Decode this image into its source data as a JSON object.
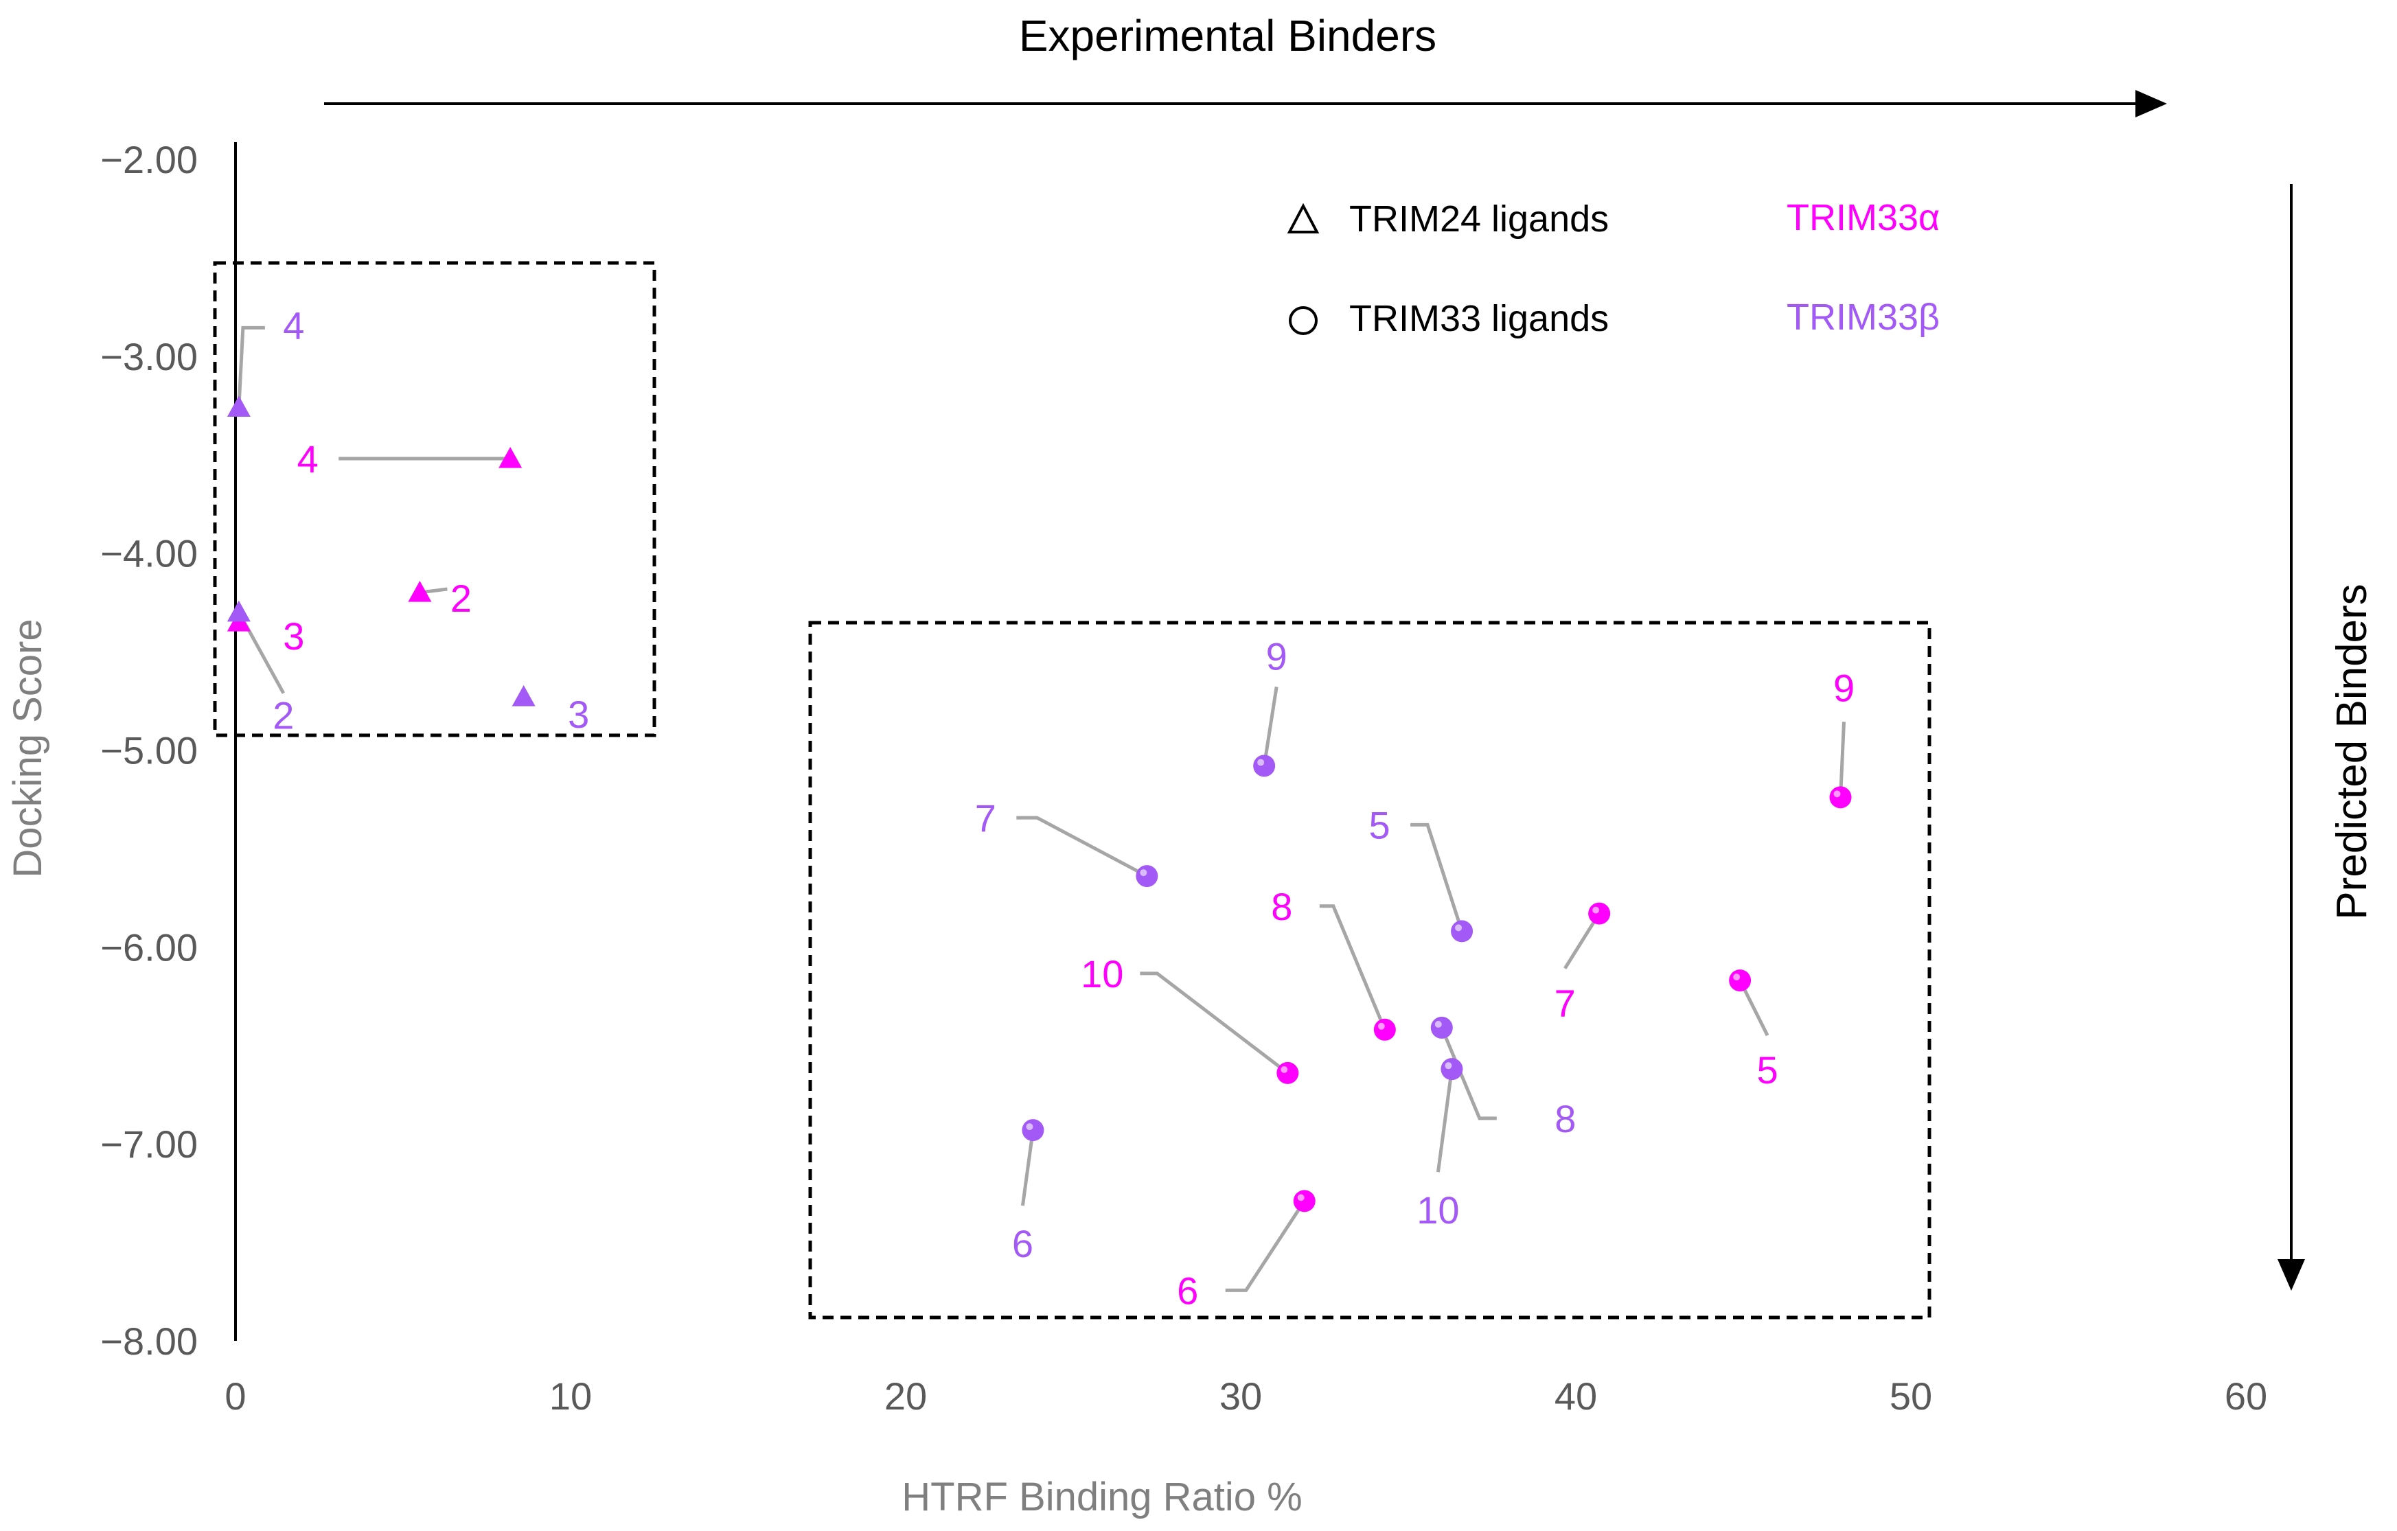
{
  "chart_data": {
    "type": "scatter",
    "title": "",
    "xlabel": "HTRF Binding Ratio %",
    "ylabel": "Docking Score",
    "xlim": [
      0,
      60
    ],
    "ylim": [
      -8,
      -2
    ],
    "x_ticks": [
      "0",
      "10",
      "20",
      "30",
      "40",
      "50",
      "60"
    ],
    "y_ticks": [
      "-2.00",
      "-3.00",
      "-4.00",
      "-5.00",
      "-6.00",
      "-7.00",
      "-8.00"
    ],
    "top_arrow_label": "Experimental Binders",
    "right_arrow_label": "Predicted Binders",
    "legend": {
      "shapes": [
        {
          "shape": "triangle",
          "label": "TRIM24 ligands"
        },
        {
          "shape": "circle",
          "label": "TRIM33 ligands"
        }
      ],
      "colors": [
        {
          "label": "TRIM33α",
          "color": "#ff00ff"
        },
        {
          "label": "TRIM33β",
          "color": "#a259f5"
        }
      ]
    },
    "series": [
      {
        "name": "TRIM24 ligands - TRIM33α",
        "color": "#ff00ff",
        "marker": "triangle",
        "points": [
          {
            "label": "2",
            "x": 5.5,
            "y": -4.2
          },
          {
            "label": "3",
            "x": 0.1,
            "y": -4.35
          },
          {
            "label": "4",
            "x": 8.2,
            "y": -3.52
          }
        ]
      },
      {
        "name": "TRIM24 ligands - TRIM33β",
        "color": "#a259f5",
        "marker": "triangle",
        "points": [
          {
            "label": "2",
            "x": 0.1,
            "y": -4.3
          },
          {
            "label": "3",
            "x": 8.6,
            "y": -4.73
          },
          {
            "label": "4",
            "x": 0.1,
            "y": -3.26
          }
        ]
      },
      {
        "name": "TRIM33 ligands - TRIM33α",
        "color": "#ff00ff",
        "marker": "circle",
        "points": [
          {
            "label": "5",
            "x": 44.9,
            "y": -6.17
          },
          {
            "label": "6",
            "x": 31.9,
            "y": -7.29
          },
          {
            "label": "7",
            "x": 40.7,
            "y": -5.83
          },
          {
            "label": "8",
            "x": 34.3,
            "y": -6.42
          },
          {
            "label": "9",
            "x": 47.9,
            "y": -5.24
          },
          {
            "label": "10",
            "x": 31.4,
            "y": -6.64
          }
        ]
      },
      {
        "name": "TRIM33 ligands - TRIM33β",
        "color": "#a259f5",
        "marker": "circle",
        "points": [
          {
            "label": "5",
            "x": 36.6,
            "y": -5.92
          },
          {
            "label": "6",
            "x": 23.8,
            "y": -6.93
          },
          {
            "label": "7",
            "x": 27.2,
            "y": -5.64
          },
          {
            "label": "8",
            "x": 36.0,
            "y": -6.41
          },
          {
            "label": "9",
            "x": 30.7,
            "y": -5.08
          },
          {
            "label": "10",
            "x": 36.3,
            "y": -6.62
          }
        ]
      }
    ]
  }
}
